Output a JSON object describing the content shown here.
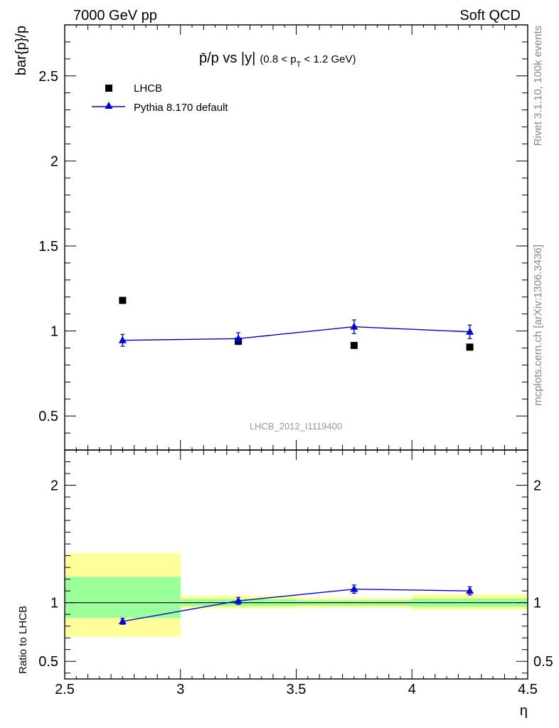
{
  "header": {
    "left": "7000 GeV pp",
    "right": "Soft QCD"
  },
  "side_text": {
    "rivet": "Rivet 3.1.10,  100k events",
    "mcplots": "mcplots.cern.ch [arXiv:1306.3436]"
  },
  "chart_data": [
    {
      "type": "scatter",
      "title_main": "p̄/p vs |y|",
      "title_sub": "(0.8 < p",
      "title_sub_T": "T",
      "title_sub_end": " < 1.2 GeV)",
      "ylabel": "bar{p}/p",
      "watermark": "LHCB_2012_I1119400",
      "ylim": [
        0.3,
        2.8
      ],
      "yticks": [
        0.5,
        1,
        1.5,
        2,
        2.5
      ],
      "ytick_labels": [
        "0.5",
        "1",
        "1.5",
        "2",
        "2.5"
      ],
      "xlim": [
        2.5,
        4.5
      ],
      "legend_position": "top-left",
      "series": [
        {
          "name": "LHCB",
          "marker": "square",
          "color": "#000000",
          "x": [
            2.75,
            3.25,
            3.75,
            4.25
          ],
          "y": [
            1.18,
            0.94,
            0.915,
            0.905
          ],
          "xerr": [
            0.25,
            0.25,
            0.25,
            0.25
          ]
        },
        {
          "name": "Pythia 8.170 default",
          "marker": "triangle",
          "color": "#0000dd",
          "x": [
            2.75,
            3.25,
            3.75,
            4.25
          ],
          "y": [
            0.945,
            0.955,
            1.025,
            0.995
          ],
          "yerr": [
            0.035,
            0.035,
            0.04,
            0.04
          ]
        }
      ]
    },
    {
      "type": "scatter",
      "ylabel": "Ratio to LHCB",
      "xlabel": "η",
      "ylim": [
        0.35,
        2.3
      ],
      "yticks": [
        0.5,
        1,
        2
      ],
      "ytick_labels": [
        "0.5",
        "1",
        "2"
      ],
      "xlim": [
        2.5,
        4.5
      ],
      "xticks": [
        2.5,
        3,
        3.5,
        4,
        4.5
      ],
      "xtick_labels": [
        "2.5",
        "3",
        "3.5",
        "4",
        "4.5"
      ],
      "bands": [
        {
          "x0": 2.5,
          "x1": 3.0,
          "yellow": [
            0.71,
            1.42
          ],
          "green": [
            0.87,
            1.22
          ]
        },
        {
          "x0": 3.0,
          "x1": 3.5,
          "yellow": [
            0.95,
            1.06
          ],
          "green": [
            0.97,
            1.03
          ]
        },
        {
          "x0": 3.5,
          "x1": 4.0,
          "yellow": [
            0.955,
            1.04
          ],
          "green": [
            0.975,
            1.02
          ]
        },
        {
          "x0": 4.0,
          "x1": 4.5,
          "yellow": [
            0.94,
            1.07
          ],
          "green": [
            0.965,
            1.035
          ]
        }
      ],
      "series": [
        {
          "name": "Pythia 8.170 default",
          "marker": "triangle",
          "color": "#0000dd",
          "x": [
            2.75,
            3.25,
            3.75,
            4.25
          ],
          "y": [
            0.84,
            1.015,
            1.115,
            1.1
          ],
          "yerr": [
            0.025,
            0.03,
            0.035,
            0.035
          ]
        }
      ],
      "reference_line": 1
    }
  ]
}
